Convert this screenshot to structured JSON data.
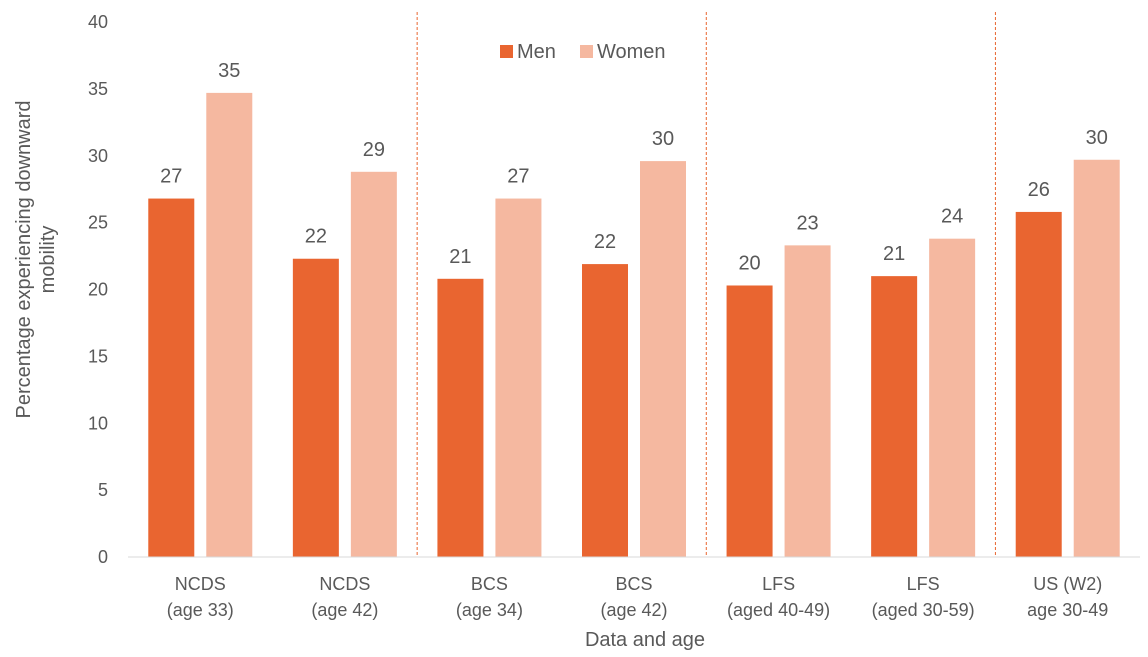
{
  "chart_data": {
    "type": "bar",
    "xlabel": "Data and age",
    "ylabel": [
      "Percentage experiencing downward",
      "mobility"
    ],
    "ylim": [
      0,
      40
    ],
    "yticks": [
      0,
      5,
      10,
      15,
      20,
      25,
      30,
      35,
      40
    ],
    "grid": false,
    "legend": "top-center",
    "categories": [
      [
        "NCDS",
        "(age 33)"
      ],
      [
        "NCDS",
        "(age 42)"
      ],
      [
        "BCS",
        "(age 34)"
      ],
      [
        "BCS",
        "(age 42)"
      ],
      [
        "LFS",
        "(aged 40-49)"
      ],
      [
        "LFS",
        "(aged 30-59)"
      ],
      [
        "US (W2)",
        "age 30-49"
      ]
    ],
    "separators_after": [
      1,
      3,
      5
    ],
    "series": [
      {
        "name": "Men",
        "color": "#e96530",
        "values": [
          26.8,
          22.3,
          20.8,
          21.9,
          20.3,
          21.0,
          25.8
        ],
        "labels": [
          "27",
          "22",
          "21",
          "22",
          "20",
          "21",
          "26"
        ]
      },
      {
        "name": "Women",
        "color": "#f5b8a0",
        "values": [
          34.7,
          28.8,
          26.8,
          29.6,
          23.3,
          23.8,
          29.7
        ],
        "labels": [
          "35",
          "29",
          "27",
          "30",
          "23",
          "24",
          "30"
        ]
      }
    ]
  },
  "colors": {
    "separator": "#e96530",
    "axis": "#d9d9d9",
    "text": "#595959"
  }
}
